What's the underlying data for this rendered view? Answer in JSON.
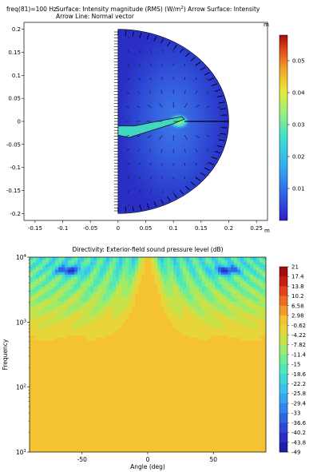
{
  "chart_data": [
    {
      "type": "heatmap",
      "subtype": "surface-with-arrows",
      "header": {
        "line1_left": "freq(81)=100 Hz",
        "line1_mid": "Surface: Intensity magnitude (RMS) (W/m",
        "line1_sup": "2",
        "line1_right": ")  Arrow Surface: Intensity",
        "line2": "Arrow Line: Normal vector"
      },
      "xlabel": "",
      "ylabel": "",
      "x_unit": "m",
      "y_unit": "m",
      "xlim": [
        -0.17,
        0.27
      ],
      "ylim": [
        -0.215,
        0.215
      ],
      "x_ticks": [
        -0.15,
        -0.1,
        -0.05,
        0,
        0.05,
        0.1,
        0.15,
        0.2,
        0.25
      ],
      "y_ticks": [
        0.2,
        0.15,
        0.1,
        0.05,
        0,
        -0.05,
        -0.1,
        -0.15,
        -0.2
      ],
      "x_tick_labels": [
        "-0.15",
        "-0.1",
        "-0.05",
        "0",
        "0.05",
        "0.1",
        "0.15",
        "0.2",
        "0.25"
      ],
      "y_tick_labels": [
        "0.2",
        "0.15",
        "0.1",
        "0.05",
        "0",
        "-0.05",
        "-0.1",
        "-0.15",
        "-0.2"
      ],
      "domain": {
        "shape": "half-disc",
        "center": [
          0,
          0
        ],
        "radius": 0.2
      },
      "colorbar": {
        "min": 0,
        "max": 0.058,
        "ticks": [
          0.01,
          0.02,
          0.03,
          0.04,
          0.05
        ],
        "tick_labels": [
          "0.01",
          "0.02",
          "0.03",
          "0.04",
          "0.05"
        ]
      },
      "grid": false,
      "legend": "colorbar-right"
    },
    {
      "type": "heatmap",
      "title": "Directivity: Exterior-field sound pressure level (dB)",
      "xlabel": "Angle (deg)",
      "ylabel": "Frequency",
      "xlim": [
        -90,
        90
      ],
      "ylim": [
        10,
        10000
      ],
      "y_scale": "log",
      "x_ticks": [
        -50,
        0,
        50
      ],
      "x_tick_labels": [
        "-50",
        "0",
        "50"
      ],
      "y_ticks": [
        10,
        100,
        1000,
        10000
      ],
      "y_tick_base": "10",
      "y_tick_exps": [
        "1",
        "2",
        "3",
        "4"
      ],
      "colorbar": {
        "type": "discrete",
        "levels": [
          "21",
          "17.4",
          "13.8",
          "10.2",
          "6.58",
          "2.98",
          "-0.62",
          "-4.22",
          "-7.82",
          "-11.4",
          "-15",
          "-18.6",
          "-22.2",
          "-25.8",
          "-29.4",
          "-33",
          "-36.6",
          "-40.2",
          "-43.8",
          "-49"
        ]
      },
      "background_level_db": 1.5,
      "grid": false,
      "legend": "colorbar-right"
    }
  ]
}
